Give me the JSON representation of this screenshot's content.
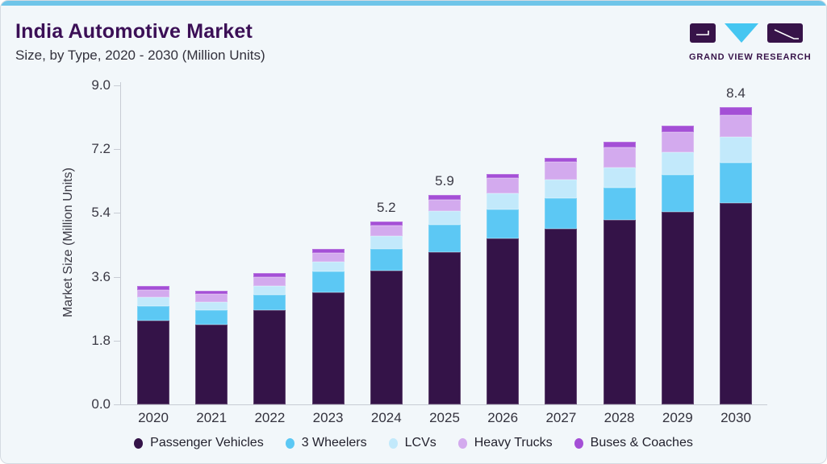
{
  "header": {
    "title": "India Automotive Market",
    "subtitle": "Size, by Type, 2020 - 2030 (Million Units)",
    "logo_text": "GRAND VIEW RESEARCH"
  },
  "brand": {
    "accent_blue": "#6fc5e9",
    "logo_purple": "#371349",
    "logo_cyan": "#45c6f1",
    "title_purple": "#3b0f56"
  },
  "chart_data": {
    "type": "bar",
    "stacked": true,
    "title": "India Automotive Market Size, by Type, 2020 - 2030 (Million Units)",
    "categories": [
      "2020",
      "2021",
      "2022",
      "2023",
      "2024",
      "2025",
      "2026",
      "2027",
      "2028",
      "2029",
      "2030"
    ],
    "series": [
      {
        "name": "Passenger Vehicles",
        "color": "#341348",
        "values": [
          2.36,
          2.25,
          2.65,
          3.16,
          3.77,
          4.3,
          4.67,
          4.96,
          5.2,
          5.42,
          5.68
        ]
      },
      {
        "name": "3 Wheelers",
        "color": "#5cc8f4",
        "values": [
          0.42,
          0.4,
          0.44,
          0.59,
          0.62,
          0.77,
          0.82,
          0.86,
          0.91,
          1.05,
          1.13
        ]
      },
      {
        "name": "LCVs",
        "color": "#c2e9fb",
        "values": [
          0.24,
          0.24,
          0.25,
          0.27,
          0.36,
          0.38,
          0.46,
          0.51,
          0.58,
          0.64,
          0.73
        ]
      },
      {
        "name": "Heavy Trucks",
        "color": "#d3aaee",
        "values": [
          0.2,
          0.22,
          0.24,
          0.26,
          0.29,
          0.33,
          0.44,
          0.5,
          0.56,
          0.57,
          0.62
        ]
      },
      {
        "name": "Buses & Coaches",
        "color": "#a44fd6",
        "values": [
          0.12,
          0.1,
          0.12,
          0.11,
          0.12,
          0.13,
          0.12,
          0.12,
          0.16,
          0.18,
          0.22
        ]
      }
    ],
    "totals_estimated": [
      3.3,
      3.2,
      3.7,
      4.4,
      5.2,
      5.9,
      6.5,
      7.0,
      7.4,
      7.9,
      8.4
    ],
    "bar_total_labels": {
      "2024": "5.2",
      "2025": "5.9",
      "2030": "8.4"
    },
    "ylabel": "Market Size (Million Units)",
    "yticks": [
      0.0,
      1.8,
      3.6,
      5.4,
      7.2,
      9.0
    ],
    "ylim": [
      0,
      9.0
    ],
    "grid": false,
    "legend_position": "bottom"
  }
}
